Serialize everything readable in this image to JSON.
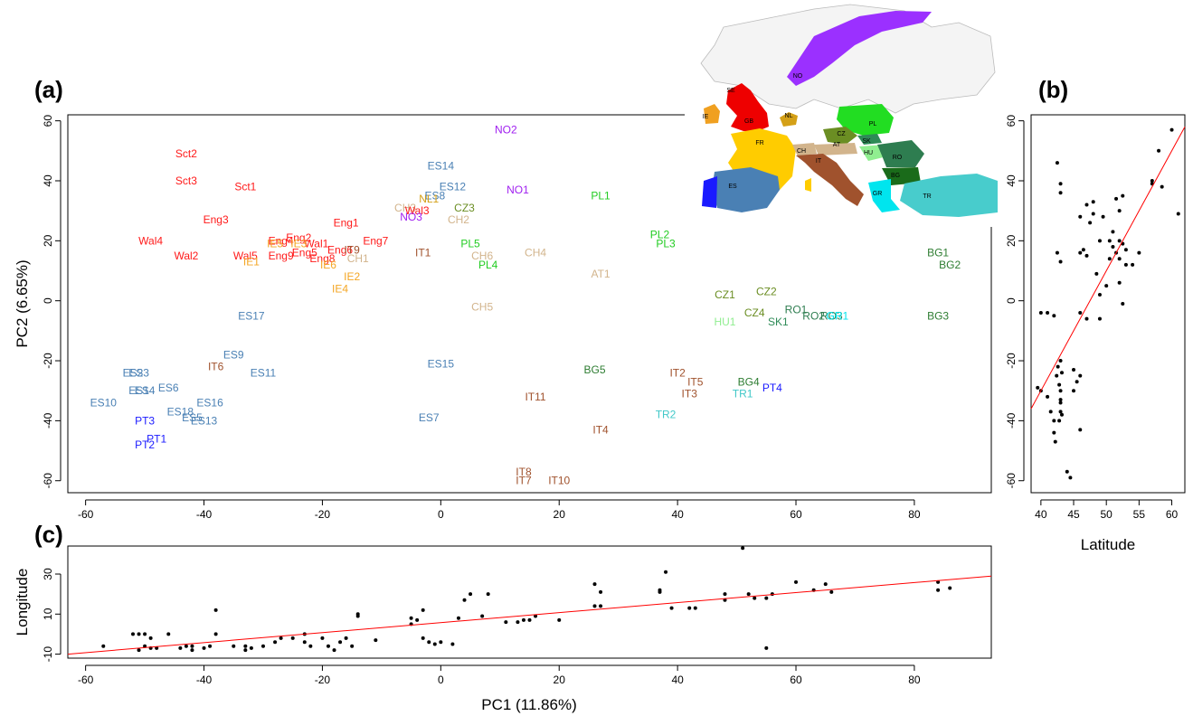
{
  "panels": {
    "a": "(a)",
    "b": "(b)",
    "c": "(c)"
  },
  "colors": {
    "Sct": "#ff1a1a",
    "Eng": "#ff1a1a",
    "Wal": "#ff1a1a",
    "IE": "#f4a623",
    "ES": "#4a80b4",
    "PT": "#1a1aff",
    "NO": "#a020f0",
    "NL": "#d4a017",
    "CZ": "#6b8e23",
    "PL": "#22cc22",
    "CH": "#d2b48c",
    "AT": "#d2b48c",
    "IT": "#a0522d",
    "BG": "#2e7d32",
    "RO": "#2e7d50",
    "SK": "#2e8b57",
    "HU": "#90ee90",
    "TR": "#40c8c8",
    "GR": "#00e5ee",
    "regression": "#ff0000"
  },
  "chart_data": [
    {
      "id": "a",
      "type": "scatter",
      "xlabel": "",
      "ylabel": "PC2 (6.65%)",
      "xlim": [
        -63,
        93
      ],
      "ylim": [
        -64,
        62
      ],
      "xticks": [
        -60,
        -40,
        -20,
        0,
        20,
        40,
        60,
        80
      ],
      "yticks": [
        -60,
        -40,
        -20,
        0,
        20,
        40,
        60
      ],
      "points": [
        {
          "label": "Sct2",
          "g": "Sct",
          "x": -43,
          "y": 49
        },
        {
          "label": "Sct3",
          "g": "Sct",
          "x": -43,
          "y": 40
        },
        {
          "label": "Sct1",
          "g": "Sct",
          "x": -33,
          "y": 38
        },
        {
          "label": "Eng3",
          "g": "Eng",
          "x": -38,
          "y": 27
        },
        {
          "label": "Wal4",
          "g": "Wal",
          "x": -49,
          "y": 20
        },
        {
          "label": "Wal2",
          "g": "Wal",
          "x": -43,
          "y": 15
        },
        {
          "label": "Wal5",
          "g": "Wal",
          "x": -33,
          "y": 15
        },
        {
          "label": "Eng1",
          "g": "Eng",
          "x": -16,
          "y": 26
        },
        {
          "label": "Eng7",
          "g": "Eng",
          "x": -11,
          "y": 20
        },
        {
          "label": "Eng2",
          "g": "Eng",
          "x": -24,
          "y": 21
        },
        {
          "label": "Eng4",
          "g": "Eng",
          "x": -27,
          "y": 20
        },
        {
          "label": "Wal1",
          "g": "Wal",
          "x": -21,
          "y": 19
        },
        {
          "label": "Eng6",
          "g": "Eng",
          "x": -17,
          "y": 17
        },
        {
          "label": "Eng5",
          "g": "Eng",
          "x": -23,
          "y": 16
        },
        {
          "label": "Eng9",
          "g": "Eng",
          "x": -27,
          "y": 15
        },
        {
          "label": "Eng8",
          "g": "Eng",
          "x": -20,
          "y": 14
        },
        {
          "label": "IE5",
          "g": "IE",
          "x": -28,
          "y": 19
        },
        {
          "label": "IE3",
          "g": "IE",
          "x": -24,
          "y": 19
        },
        {
          "label": "IE1",
          "g": "IE",
          "x": -32,
          "y": 13
        },
        {
          "label": "IE6",
          "g": "IE",
          "x": -19,
          "y": 12
        },
        {
          "label": "IE2",
          "g": "IE",
          "x": -15,
          "y": 8
        },
        {
          "label": "IE4",
          "g": "IE",
          "x": -17,
          "y": 4
        },
        {
          "label": "IT9",
          "g": "IT",
          "x": -15,
          "y": 17
        },
        {
          "label": "CH1",
          "g": "CH",
          "x": -14,
          "y": 14
        },
        {
          "label": "ES14",
          "g": "ES",
          "x": 0,
          "y": 45
        },
        {
          "label": "ES12",
          "g": "ES",
          "x": 2,
          "y": 38
        },
        {
          "label": "ES8",
          "g": "ES",
          "x": -1,
          "y": 35
        },
        {
          "label": "NL1",
          "g": "NL",
          "x": -2,
          "y": 34
        },
        {
          "label": "CH3",
          "g": "CH",
          "x": -6,
          "y": 31
        },
        {
          "label": "Wal3",
          "g": "Wal",
          "x": -4,
          "y": 30
        },
        {
          "label": "NO3",
          "g": "NO",
          "x": -5,
          "y": 28
        },
        {
          "label": "CZ3",
          "g": "CZ",
          "x": 4,
          "y": 31
        },
        {
          "label": "CH2",
          "g": "CH",
          "x": 3,
          "y": 27
        },
        {
          "label": "NO2",
          "g": "NO",
          "x": 11,
          "y": 57
        },
        {
          "label": "NO1",
          "g": "NO",
          "x": 13,
          "y": 37
        },
        {
          "label": "IT1",
          "g": "IT",
          "x": -3,
          "y": 16
        },
        {
          "label": "PL5",
          "g": "PL",
          "x": 5,
          "y": 19
        },
        {
          "label": "CH6",
          "g": "CH",
          "x": 7,
          "y": 15
        },
        {
          "label": "PL4",
          "g": "PL",
          "x": 8,
          "y": 12
        },
        {
          "label": "CH4",
          "g": "CH",
          "x": 16,
          "y": 16
        },
        {
          "label": "PL1",
          "g": "PL",
          "x": 27,
          "y": 35
        },
        {
          "label": "AT1",
          "g": "AT",
          "x": 27,
          "y": 9
        },
        {
          "label": "PL2",
          "g": "PL",
          "x": 37,
          "y": 22
        },
        {
          "label": "PL3",
          "g": "PL",
          "x": 38,
          "y": 19
        },
        {
          "label": "CH5",
          "g": "CH",
          "x": 7,
          "y": -2
        },
        {
          "label": "ES17",
          "g": "ES",
          "x": -32,
          "y": -5
        },
        {
          "label": "ES9",
          "g": "ES",
          "x": -35,
          "y": -18
        },
        {
          "label": "IT6",
          "g": "IT",
          "x": -38,
          "y": -22
        },
        {
          "label": "ES11",
          "g": "ES",
          "x": -30,
          "y": -24
        },
        {
          "label": "ES15",
          "g": "ES",
          "x": 0,
          "y": -21
        },
        {
          "label": "ES2",
          "g": "ES",
          "x": -52,
          "y": -24
        },
        {
          "label": "ES3",
          "g": "ES",
          "x": -51,
          "y": -24
        },
        {
          "label": "ES1",
          "g": "ES",
          "x": -51,
          "y": -30
        },
        {
          "label": "ES4",
          "g": "ES",
          "x": -50,
          "y": -30
        },
        {
          "label": "ES6",
          "g": "ES",
          "x": -46,
          "y": -29
        },
        {
          "label": "ES10",
          "g": "ES",
          "x": -57,
          "y": -34
        },
        {
          "label": "ES16",
          "g": "ES",
          "x": -39,
          "y": -34
        },
        {
          "label": "ES18",
          "g": "ES",
          "x": -44,
          "y": -37
        },
        {
          "label": "ES5",
          "g": "ES",
          "x": -42,
          "y": -39
        },
        {
          "label": "ES13",
          "g": "ES",
          "x": -40,
          "y": -40
        },
        {
          "label": "ES7",
          "g": "ES",
          "x": -2,
          "y": -39
        },
        {
          "label": "PT3",
          "g": "PT",
          "x": -50,
          "y": -40
        },
        {
          "label": "PT1",
          "g": "PT",
          "x": -48,
          "y": -46
        },
        {
          "label": "PT2",
          "g": "PT",
          "x": -50,
          "y": -48
        },
        {
          "label": "IT11",
          "g": "IT",
          "x": 16,
          "y": -32
        },
        {
          "label": "BG5",
          "g": "BG",
          "x": 26,
          "y": -23
        },
        {
          "label": "IT2",
          "g": "IT",
          "x": 40,
          "y": -24
        },
        {
          "label": "IT5",
          "g": "IT",
          "x": 43,
          "y": -27
        },
        {
          "label": "IT3",
          "g": "IT",
          "x": 42,
          "y": -31
        },
        {
          "label": "BG4",
          "g": "BG",
          "x": 52,
          "y": -27
        },
        {
          "label": "TR1",
          "g": "TR",
          "x": 51,
          "y": -31
        },
        {
          "label": "PT4",
          "g": "PT",
          "x": 56,
          "y": -29
        },
        {
          "label": "TR2",
          "g": "TR",
          "x": 38,
          "y": -38
        },
        {
          "label": "IT4",
          "g": "IT",
          "x": 27,
          "y": -43
        },
        {
          "label": "IT8",
          "g": "IT",
          "x": 14,
          "y": -57
        },
        {
          "label": "IT7",
          "g": "IT",
          "x": 14,
          "y": -60
        },
        {
          "label": "IT10",
          "g": "IT",
          "x": 20,
          "y": -60
        },
        {
          "label": "CZ1",
          "g": "CZ",
          "x": 48,
          "y": 2
        },
        {
          "label": "CZ2",
          "g": "CZ",
          "x": 55,
          "y": 3
        },
        {
          "label": "CZ4",
          "g": "CZ",
          "x": 53,
          "y": -4
        },
        {
          "label": "HU1",
          "g": "HU",
          "x": 48,
          "y": -7
        },
        {
          "label": "SK1",
          "g": "SK",
          "x": 57,
          "y": -7
        },
        {
          "label": "RO1",
          "g": "RO",
          "x": 60,
          "y": -3
        },
        {
          "label": "RO2",
          "g": "RO",
          "x": 63,
          "y": -5
        },
        {
          "label": "RO3",
          "g": "RO",
          "x": 66,
          "y": -5
        },
        {
          "label": "GR1",
          "g": "GR",
          "x": 67,
          "y": -5
        },
        {
          "label": "BG1",
          "g": "BG",
          "x": 84,
          "y": 16
        },
        {
          "label": "BG2",
          "g": "BG",
          "x": 86,
          "y": 12
        },
        {
          "label": "BG3",
          "g": "BG",
          "x": 84,
          "y": -5
        }
      ]
    },
    {
      "id": "b",
      "type": "scatter",
      "xlabel": "Latitude",
      "ylabel": "",
      "xlim": [
        38.5,
        62
      ],
      "ylim": [
        -64,
        62
      ],
      "xticks": [
        40,
        45,
        50,
        55,
        60
      ],
      "yticks": [
        -60,
        -40,
        -20,
        0,
        20,
        40,
        60
      ],
      "regression": [
        [
          38.5,
          -36
        ],
        [
          62,
          58
        ]
      ],
      "points": [
        [
          40,
          -4
        ],
        [
          41,
          -4
        ],
        [
          42,
          -5
        ],
        [
          42.5,
          46
        ],
        [
          43,
          36
        ],
        [
          43,
          39
        ],
        [
          42.5,
          16
        ],
        [
          43,
          13
        ],
        [
          39.5,
          -29
        ],
        [
          40,
          -30
        ],
        [
          41,
          -32
        ],
        [
          41.5,
          -37
        ],
        [
          42,
          -40
        ],
        [
          42,
          -44
        ],
        [
          42.2,
          -47
        ],
        [
          42.4,
          -25
        ],
        [
          42.6,
          -22
        ],
        [
          42.8,
          -28
        ],
        [
          43,
          -20
        ],
        [
          43.2,
          -24
        ],
        [
          43,
          -30
        ],
        [
          43,
          -34
        ],
        [
          43,
          -37
        ],
        [
          42.8,
          -40
        ],
        [
          43.2,
          -38
        ],
        [
          43,
          -33
        ],
        [
          44,
          -57
        ],
        [
          44.5,
          -59
        ],
        [
          45,
          -23
        ],
        [
          45.5,
          -27
        ],
        [
          45,
          -30
        ],
        [
          46,
          -25
        ],
        [
          46,
          -43
        ],
        [
          46,
          -4
        ],
        [
          46,
          16
        ],
        [
          46.5,
          17
        ],
        [
          46,
          28
        ],
        [
          47,
          32
        ],
        [
          47,
          -6
        ],
        [
          47,
          15
        ],
        [
          47.5,
          26
        ],
        [
          48,
          29
        ],
        [
          48,
          33
        ],
        [
          48.5,
          9
        ],
        [
          49,
          -6
        ],
        [
          49,
          20
        ],
        [
          49,
          2
        ],
        [
          49.5,
          28
        ],
        [
          50,
          5
        ],
        [
          50.5,
          14
        ],
        [
          50.5,
          20
        ],
        [
          51,
          23
        ],
        [
          51,
          18
        ],
        [
          51.5,
          34
        ],
        [
          51.5,
          16
        ],
        [
          52,
          20
        ],
        [
          52,
          14
        ],
        [
          52,
          30
        ],
        [
          52.5,
          19
        ],
        [
          52.5,
          35
        ],
        [
          52,
          6
        ],
        [
          52.5,
          -1
        ],
        [
          53,
          17
        ],
        [
          53,
          12
        ],
        [
          54,
          12
        ],
        [
          55,
          16
        ],
        [
          57,
          40
        ],
        [
          57,
          39
        ],
        [
          58,
          50
        ],
        [
          58.5,
          38
        ],
        [
          60,
          57
        ],
        [
          61,
          29
        ]
      ]
    },
    {
      "id": "c",
      "type": "scatter",
      "xlabel": "PC1 (11.86%)",
      "ylabel": "Longitude",
      "xlim": [
        -63,
        93
      ],
      "ylim": [
        -12,
        44
      ],
      "xticks": [
        -60,
        -40,
        -20,
        0,
        20,
        40,
        60,
        80
      ],
      "yticks": [
        -10,
        10,
        30
      ],
      "regression": [
        [
          -63,
          -10
        ],
        [
          93,
          29
        ]
      ],
      "points": [
        [
          -57,
          -6
        ],
        [
          -52,
          0
        ],
        [
          -51,
          0
        ],
        [
          -50,
          0
        ],
        [
          -49,
          -2
        ],
        [
          -50,
          -6
        ],
        [
          -51,
          -8
        ],
        [
          -49,
          -7
        ],
        [
          -48,
          -7
        ],
        [
          -46,
          0
        ],
        [
          -44,
          -7
        ],
        [
          -43,
          -6
        ],
        [
          -42,
          -6
        ],
        [
          -42,
          -8
        ],
        [
          -40,
          -7
        ],
        [
          -39,
          -6
        ],
        [
          -38,
          12
        ],
        [
          -38,
          0
        ],
        [
          -35,
          -6
        ],
        [
          -33,
          -6
        ],
        [
          -33,
          -8
        ],
        [
          -32,
          -7
        ],
        [
          -30,
          -6
        ],
        [
          -28,
          -4
        ],
        [
          -27,
          -2
        ],
        [
          -25,
          -2
        ],
        [
          -23,
          0
        ],
        [
          -23,
          -4
        ],
        [
          -22,
          -6
        ],
        [
          -20,
          -2
        ],
        [
          -19,
          -6
        ],
        [
          -18,
          -8
        ],
        [
          -17,
          -4
        ],
        [
          -16,
          -2
        ],
        [
          -15,
          -6
        ],
        [
          -14,
          10
        ],
        [
          -14,
          9
        ],
        [
          -11,
          -3
        ],
        [
          -5,
          5
        ],
        [
          -5,
          8
        ],
        [
          -4,
          7
        ],
        [
          -3,
          -2
        ],
        [
          -3,
          12
        ],
        [
          -2,
          -4
        ],
        [
          -1,
          -5
        ],
        [
          0,
          -4
        ],
        [
          2,
          -5
        ],
        [
          3,
          8
        ],
        [
          4,
          17
        ],
        [
          5,
          20
        ],
        [
          7,
          9
        ],
        [
          8,
          20
        ],
        [
          11,
          6
        ],
        [
          13,
          6
        ],
        [
          14,
          7
        ],
        [
          15,
          7
        ],
        [
          16,
          9
        ],
        [
          20,
          7
        ],
        [
          26,
          25
        ],
        [
          26,
          14
        ],
        [
          27,
          21
        ],
        [
          27,
          14
        ],
        [
          37,
          21
        ],
        [
          37,
          22
        ],
        [
          38,
          31
        ],
        [
          39,
          13
        ],
        [
          42,
          13
        ],
        [
          43,
          13
        ],
        [
          48,
          20
        ],
        [
          48,
          17
        ],
        [
          51,
          43
        ],
        [
          52,
          20
        ],
        [
          53,
          18
        ],
        [
          55,
          18
        ],
        [
          55,
          -7
        ],
        [
          56,
          20
        ],
        [
          60,
          26
        ],
        [
          63,
          22
        ],
        [
          65,
          25
        ],
        [
          66,
          21
        ],
        [
          84,
          26
        ],
        [
          84,
          22
        ],
        [
          86,
          23
        ]
      ]
    }
  ],
  "map": {
    "labels": [
      "NO",
      "SE",
      "GB",
      "IE",
      "NL",
      "PL",
      "CZ",
      "FR",
      "CH",
      "AT",
      "SK",
      "HU",
      "RO",
      "IT",
      "BG",
      "ES",
      "GR",
      "TR"
    ]
  }
}
